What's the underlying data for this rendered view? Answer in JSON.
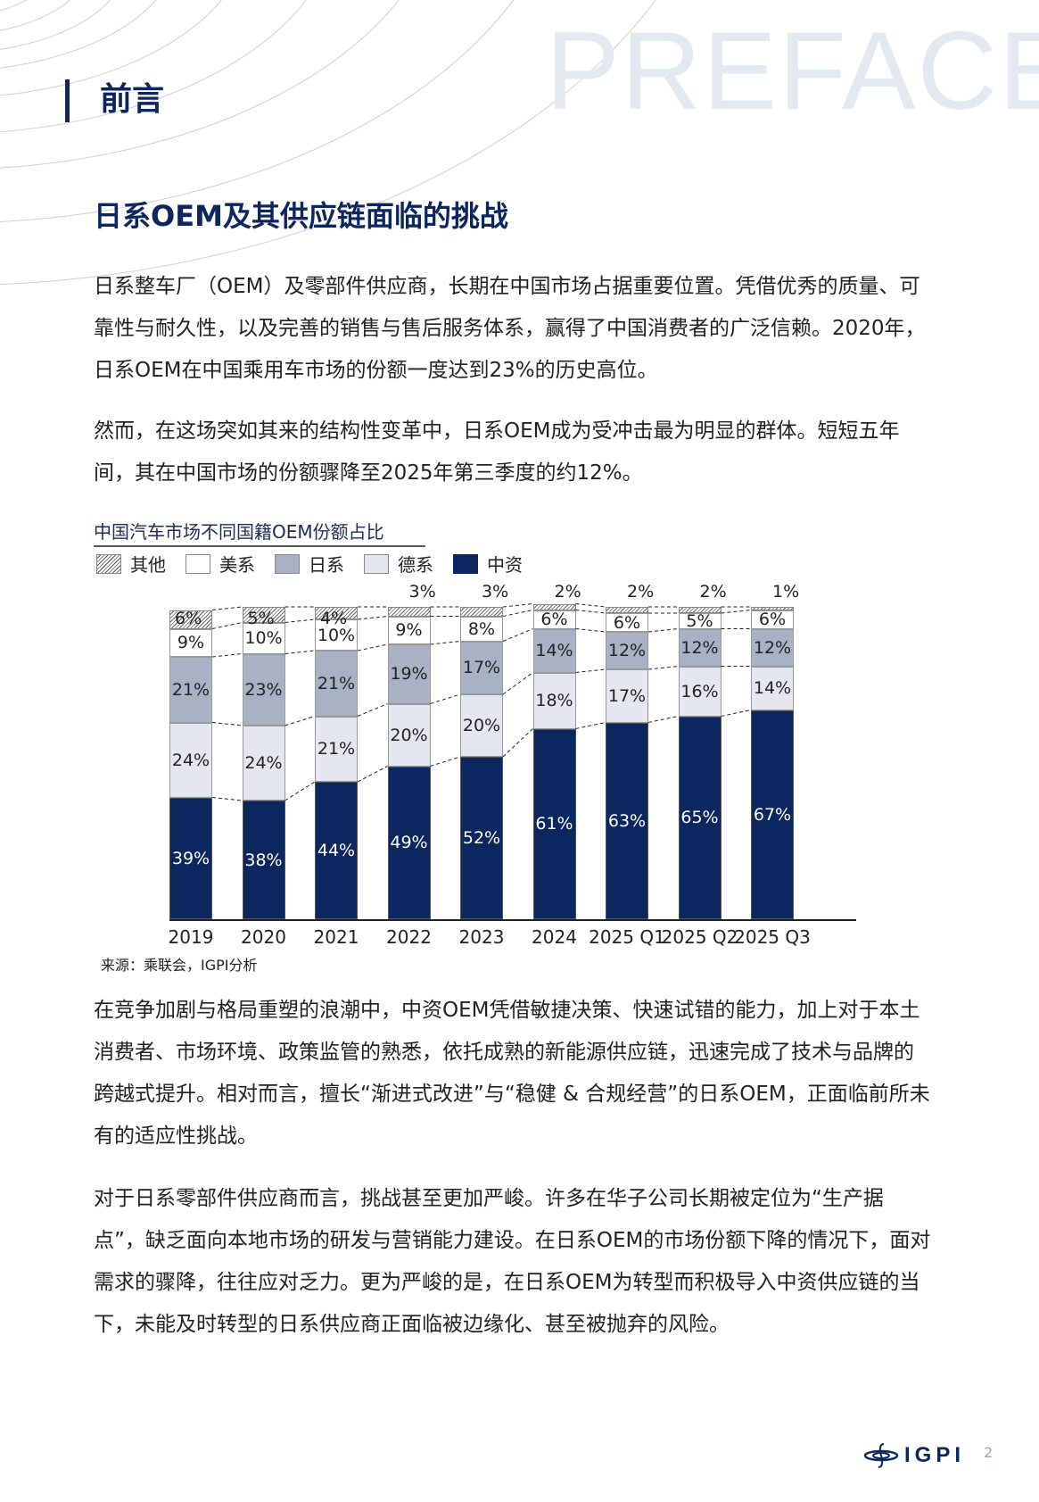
{
  "header": {
    "watermark": "PREFACE",
    "section_title": "前言",
    "heading": "日系OEM及其供应链面临的挑战"
  },
  "paragraphs": [
    "日系整车厂（OEM）及零部件供应商，长期在中国市场占据重要位置。凭借优秀的质量、可靠性与耐久性，以及完善的销售与售后服务体系，赢得了中国消费者的广泛信赖。2020年，日系OEM在中国乘用车市场的份额一度达到23%的历史高位。",
    "然而，在这场突如其来的结构性变革中，日系OEM成为受冲击最为明显的群体。短短五年间，其在中国市场的份额骤降至2025年第三季度的约12%。",
    "在竞争加剧与格局重塑的浪潮中，中资OEM凭借敏捷决策、快速试错的能力，加上对于本土消费者、市场环境、政策监管的熟悉，依托成熟的新能源供应链，迅速完成了技术与品牌的跨越式提升。相对而言，擅长“渐进式改进”与“稳健 & 合规经营”的日系OEM，正面临前所未有的适应性挑战。",
    "对于日系零部件供应商而言，挑战甚至更加严峻。许多在华子公司长期被定位为“生产据点”，缺乏面向本地市场的研发与营销能力建设。在日系OEM的市场份额下降的情况下，面对需求的骤降，往往应对乏力。更为严峻的是，在日系OEM为转型而积极导入中资供应链的当下，未能及时转型的日系供应商正面临被边缘化、甚至被抛弃的风险。"
  ],
  "chart": {
    "title": "中国汽车市场不同国籍OEM份额占比",
    "legend": [
      "其他",
      "美系",
      "日系",
      "德系",
      "中资"
    ],
    "source": "来源：乘联会，IGPI分析"
  },
  "chart_data": {
    "type": "bar",
    "stacked": true,
    "title": "中国汽车市场不同国籍OEM份额占比",
    "xlabel": "",
    "ylabel": "",
    "ylim": [
      0,
      100
    ],
    "unit": "%",
    "categories": [
      "2019",
      "2020",
      "2021",
      "2022",
      "2023",
      "2024",
      "2025 Q1",
      "2025 Q2",
      "2025 Q3"
    ],
    "series": [
      {
        "name": "中资",
        "color": "#0c2660",
        "values": [
          39,
          38,
          44,
          49,
          52,
          61,
          63,
          65,
          67
        ]
      },
      {
        "name": "德系",
        "color": "#e4e7ef",
        "values": [
          24,
          24,
          21,
          20,
          20,
          18,
          17,
          16,
          14
        ]
      },
      {
        "name": "日系",
        "color": "#a9b2c4",
        "values": [
          21,
          23,
          21,
          19,
          17,
          14,
          12,
          12,
          12
        ]
      },
      {
        "name": "美系",
        "color": "#ffffff",
        "values": [
          9,
          10,
          10,
          9,
          8,
          6,
          6,
          5,
          6
        ]
      },
      {
        "name": "其他",
        "color": "hatched",
        "values": [
          6,
          5,
          4,
          3,
          3,
          2,
          2,
          2,
          1
        ]
      }
    ],
    "legend_position": "top",
    "grid": false
  },
  "footer": {
    "logo_text": "IGPI",
    "page_number": "2"
  }
}
